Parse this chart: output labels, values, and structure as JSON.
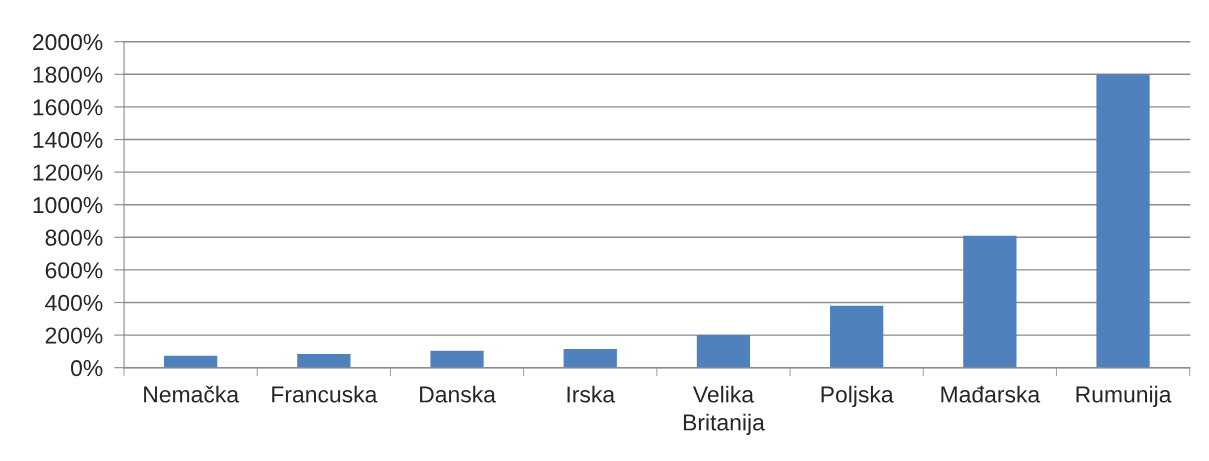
{
  "chart_data": {
    "type": "bar",
    "categories": [
      "Nemačka",
      "Francuska",
      "Danska",
      "Irska",
      "Velika\nBritanija",
      "Poljska",
      "Mađarska",
      "Rumunija"
    ],
    "values": [
      74,
      84,
      104,
      115,
      200,
      380,
      810,
      1800
    ],
    "color": "#4f81bd",
    "ylim": [
      0,
      2000
    ],
    "yticks": [
      {
        "value": 0,
        "label": "0%"
      },
      {
        "value": 200,
        "label": "200%"
      },
      {
        "value": 400,
        "label": "400%"
      },
      {
        "value": 600,
        "label": "600%"
      },
      {
        "value": 800,
        "label": "800%"
      },
      {
        "value": 1000,
        "label": "1000%"
      },
      {
        "value": 1200,
        "label": "1200%"
      },
      {
        "value": 1400,
        "label": "1400%"
      },
      {
        "value": 1600,
        "label": "1600%"
      },
      {
        "value": 1800,
        "label": "1800%"
      },
      {
        "value": 2000,
        "label": "2000%"
      }
    ],
    "grid": "y",
    "legend": false
  }
}
